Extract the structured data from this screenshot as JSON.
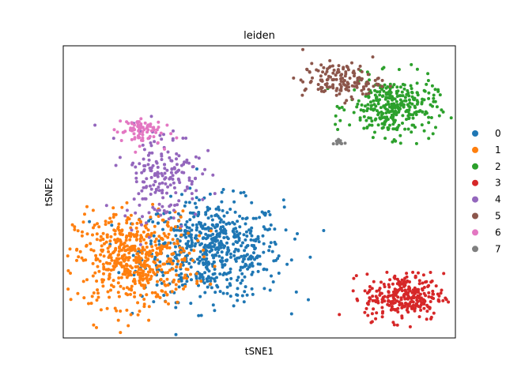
{
  "chart_data": {
    "type": "scatter",
    "title": "leiden",
    "xlabel": "tSNE1",
    "ylabel": "tSNE2",
    "xlim": [
      0,
      100
    ],
    "ylim": [
      0,
      100
    ],
    "grid": false,
    "ticks": false,
    "legend_position": "right",
    "series": [
      {
        "name": "0",
        "color": "#1f77b4",
        "n": 620,
        "center": [
          38,
          30
        ],
        "spread": [
          9,
          8.5
        ],
        "count_shape": "gaussian"
      },
      {
        "name": "1",
        "color": "#ff7f0e",
        "n": 560,
        "center": [
          18,
          27
        ],
        "spread": [
          7.5,
          8
        ],
        "count_shape": "gaussian"
      },
      {
        "name": "2",
        "color": "#2ca02c",
        "n": 330,
        "center": [
          84,
          79
        ],
        "spread": [
          5.5,
          5
        ],
        "count_shape": "gaussian"
      },
      {
        "name": "3",
        "color": "#d62728",
        "n": 290,
        "center": [
          87,
          14
        ],
        "spread": [
          5,
          4
        ],
        "count_shape": "gaussian"
      },
      {
        "name": "4",
        "color": "#9467bd",
        "n": 190,
        "center": [
          25,
          56
        ],
        "spread": [
          5,
          8
        ],
        "count_shape": "gaussian"
      },
      {
        "name": "5",
        "color": "#8c564b",
        "n": 150,
        "center": [
          71,
          88
        ],
        "spread": [
          5,
          3
        ],
        "count_shape": "gaussian"
      },
      {
        "name": "6",
        "color": "#e377c2",
        "n": 75,
        "center": [
          19,
          71
        ],
        "spread": [
          3,
          2.5
        ],
        "count_shape": "gaussian"
      },
      {
        "name": "7",
        "color": "#7f7f7f",
        "n": 12,
        "center": [
          70.5,
          67
        ],
        "spread": [
          0.8,
          0.6
        ],
        "count_shape": "gaussian"
      }
    ]
  }
}
